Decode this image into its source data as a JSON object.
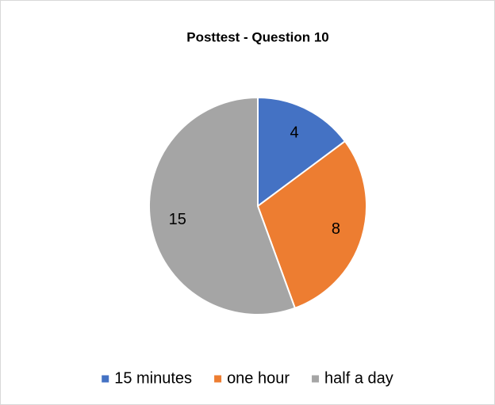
{
  "chart_data": {
    "type": "pie",
    "title": "Posttest - Question 10",
    "categories": [
      "15 minutes",
      "one hour",
      "half a day"
    ],
    "values": [
      4,
      8,
      15
    ],
    "colors": [
      "#4472c4",
      "#ed7d31",
      "#a5a5a5"
    ],
    "legend": "bottom"
  }
}
